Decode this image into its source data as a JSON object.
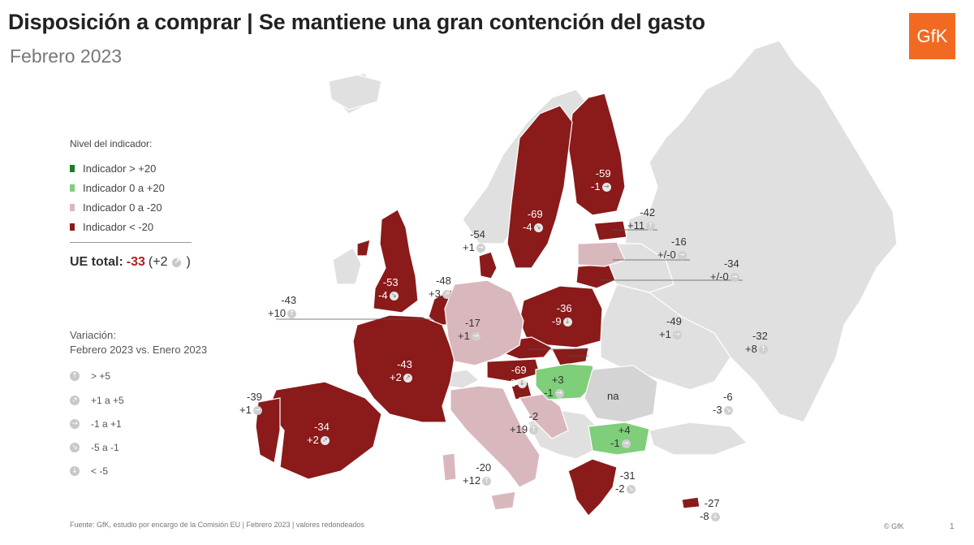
{
  "title": "Disposición a comprar | Se mantiene una gran contención del gasto",
  "subtitle": "Febrero 2023",
  "logo_text": "GfK",
  "colors": {
    "dark_green": "#1e7a2e",
    "light_green": "#7fce7a",
    "light_pink": "#d9b8bd",
    "dark_red": "#8b1a1a",
    "non_eu_gray": "#e0e0e0"
  },
  "legend": {
    "title": "Nivel del indicador:",
    "items": [
      {
        "label": "Indicador > +20",
        "color": "#1e7a2e"
      },
      {
        "label": "Indicador 0 a +20",
        "color": "#7fce7a"
      },
      {
        "label": "Indicador 0 a -20",
        "color": "#d9b8bd"
      },
      {
        "label": "Indicador < -20",
        "color": "#8b1a1a"
      }
    ]
  },
  "eu_total": {
    "label": "UE total:",
    "value": "-33",
    "change_open": "(+2",
    "change_close": ")"
  },
  "variation": {
    "title_line1": "Variación:",
    "title_line2": "Febrero 2023 vs. Enero 2023",
    "items": [
      {
        "label": "> +5",
        "icon": "arrow-up-icon",
        "glyph": "↑"
      },
      {
        "label": "+1 a +5",
        "icon": "arrow-up-right-icon",
        "glyph": "↗"
      },
      {
        "label": "-1 a +1",
        "icon": "arrow-right-icon",
        "glyph": "→"
      },
      {
        "label": "-5 a -1",
        "icon": "arrow-down-right-icon",
        "glyph": "↘"
      },
      {
        "label": "< -5",
        "icon": "arrow-down-icon",
        "glyph": "↓"
      }
    ]
  },
  "countries": [
    {
      "value": "-59",
      "change": "-1",
      "glyph": "→"
    },
    {
      "value": "-69",
      "change": "-4",
      "glyph": "↘"
    },
    {
      "value": "-42",
      "change": "+11",
      "glyph": "↑"
    },
    {
      "value": "-16",
      "change": "+/-0",
      "glyph": "→"
    },
    {
      "value": "-34",
      "change": "+/-0",
      "glyph": "→"
    },
    {
      "value": "-54",
      "change": "+1",
      "glyph": "→"
    },
    {
      "value": "-53",
      "change": "-4",
      "glyph": "↘"
    },
    {
      "value": "-48",
      "change": "+3",
      "glyph": "↗"
    },
    {
      "value": "-36",
      "change": "-9",
      "glyph": "↓"
    },
    {
      "value": "-43",
      "change": "+10",
      "glyph": "↑"
    },
    {
      "value": "-17",
      "change": "+1",
      "glyph": "→"
    },
    {
      "value": "-49",
      "change": "+1",
      "glyph": "→"
    },
    {
      "value": "-32",
      "change": "+8",
      "glyph": "↑"
    },
    {
      "value": "-43",
      "change": "+2",
      "glyph": "↗"
    },
    {
      "value": "-69",
      "change": "-6",
      "glyph": "↓"
    },
    {
      "value": "+3",
      "change": "-1",
      "glyph": "→"
    },
    {
      "value": "na",
      "change": "",
      "glyph": ""
    },
    {
      "value": "-39",
      "change": "+1",
      "glyph": "→"
    },
    {
      "value": "-34",
      "change": "+2",
      "glyph": "↗"
    },
    {
      "value": "-2",
      "change": "+19",
      "glyph": "↑"
    },
    {
      "value": "-6",
      "change": "-3",
      "glyph": "↘"
    },
    {
      "value": "+4",
      "change": "-1",
      "glyph": "→"
    },
    {
      "value": "-20",
      "change": "+12",
      "glyph": "↑"
    },
    {
      "value": "-31",
      "change": "-2",
      "glyph": "↘"
    },
    {
      "value": "-27",
      "change": "-8",
      "glyph": "↓"
    }
  ],
  "footer": "Fuente: GfK, estudio por encargo de la Comisión EU  | Febrero 2023 | valores redondeados",
  "copyright": "© GfK",
  "page_number": "1"
}
